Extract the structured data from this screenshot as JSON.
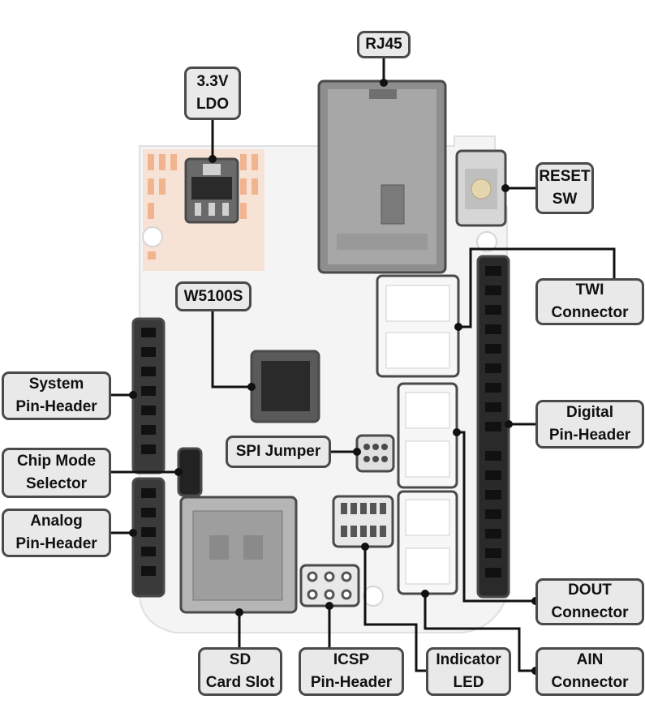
{
  "colors": {
    "board": "#f4f4f4",
    "callout_fill": "#e9e9e9",
    "callout_border": "#4a4a4a",
    "leader": "#111111",
    "connector_white": "#f7f7f7",
    "copper_pads": "#f2b48f",
    "header_black": "#1b1b1b"
  },
  "labels": {
    "rj45": "RJ45",
    "ldo": "3.3V\nLDO",
    "reset_sw": "RESET\nSW",
    "twi": "TWI\nConnector",
    "w5100s": "W5100S",
    "system_header": "System\nPin-Header",
    "digital_header": "Digital\nPin-Header",
    "spi_jumper": "SPI Jumper",
    "chip_mode": "Chip Mode\nSelector",
    "analog_header": "Analog\nPin-Header",
    "dout": "DOUT\nConnector",
    "sd": "SD\nCard Slot",
    "icsp": "ICSP\nPin-Header",
    "indicator_led": "Indicator\nLED",
    "ain": "AIN\nConnector"
  }
}
